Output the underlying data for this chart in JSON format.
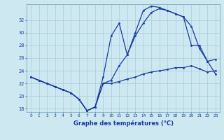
{
  "title": "Graphe des températures (°C)",
  "bg_color": "#cde8f0",
  "line_color": "#1a3a9e",
  "grid_color": "#a8ccd8",
  "xlim": [
    -0.5,
    23.5
  ],
  "ylim": [
    17.5,
    34.5
  ],
  "yticks": [
    18,
    20,
    22,
    24,
    26,
    28,
    30,
    32
  ],
  "xticks": [
    0,
    1,
    2,
    3,
    4,
    5,
    6,
    7,
    8,
    9,
    10,
    11,
    12,
    13,
    14,
    15,
    16,
    17,
    18,
    19,
    20,
    21,
    22,
    23
  ],
  "line1_x": [
    0,
    1,
    2,
    3,
    4,
    5,
    6,
    7,
    8,
    9,
    10,
    11,
    12,
    13,
    14,
    15,
    16,
    17,
    18,
    19,
    20,
    21,
    22,
    23
  ],
  "line1_y": [
    23.0,
    22.5,
    22.0,
    21.5,
    21.0,
    20.5,
    19.5,
    17.7,
    18.3,
    22.0,
    22.0,
    22.3,
    22.7,
    23.0,
    23.5,
    23.8,
    24.0,
    24.2,
    24.5,
    24.5,
    24.8,
    24.3,
    23.8,
    24.0
  ],
  "line2_x": [
    0,
    1,
    2,
    3,
    4,
    5,
    6,
    7,
    8,
    9,
    10,
    11,
    12,
    13,
    14,
    15,
    16,
    17,
    18,
    19,
    20,
    21,
    22,
    23
  ],
  "line2_y": [
    23.0,
    22.5,
    22.0,
    21.5,
    21.0,
    20.5,
    19.5,
    17.7,
    18.3,
    22.0,
    22.5,
    24.8,
    26.5,
    29.5,
    31.5,
    33.2,
    33.8,
    33.5,
    33.0,
    32.5,
    31.0,
    27.5,
    25.5,
    25.8
  ],
  "line3_x": [
    0,
    1,
    2,
    3,
    4,
    5,
    6,
    7,
    8,
    9,
    10,
    11,
    12,
    13,
    14,
    15,
    16,
    17,
    18,
    19,
    20,
    21,
    22,
    23
  ],
  "line3_y": [
    23.0,
    22.5,
    22.0,
    21.5,
    21.0,
    20.5,
    19.5,
    17.7,
    18.3,
    23.0,
    29.5,
    31.5,
    26.5,
    30.0,
    33.5,
    34.2,
    34.0,
    33.5,
    33.0,
    32.5,
    28.0,
    28.0,
    25.5,
    23.5
  ]
}
